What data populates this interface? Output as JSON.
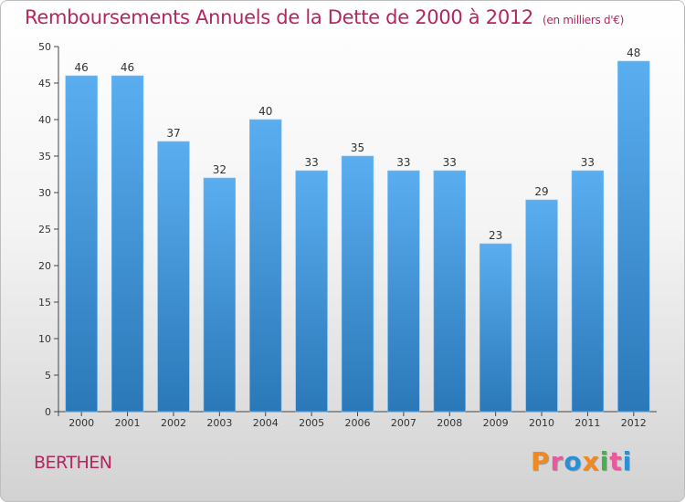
{
  "chart_data": {
    "type": "bar",
    "title": "Remboursements Annuels de la Dette de 2000 à 2012",
    "subtitle": "(en milliers d'€)",
    "categories": [
      "2000",
      "2001",
      "2002",
      "2003",
      "2004",
      "2005",
      "2006",
      "2007",
      "2008",
      "2009",
      "2010",
      "2011",
      "2012"
    ],
    "values": [
      46,
      46,
      37,
      32,
      40,
      33,
      35,
      33,
      33,
      23,
      29,
      33,
      48
    ],
    "ylim": [
      0,
      50
    ],
    "yticks": [
      0,
      5,
      10,
      15,
      20,
      25,
      30,
      35,
      40,
      45,
      50
    ],
    "xlabel": "",
    "ylabel": "",
    "grid": false,
    "legend": "none",
    "bar_color": "#4fa6e8"
  },
  "footer": {
    "commune": "BERTHEN",
    "brand": "Proxiti",
    "brand_colors": [
      "#f08a1e",
      "#e85a9c",
      "#2a8fd6",
      "#f08a1e",
      "#46b04a",
      "#e85a9c",
      "#2a8fd6"
    ]
  }
}
